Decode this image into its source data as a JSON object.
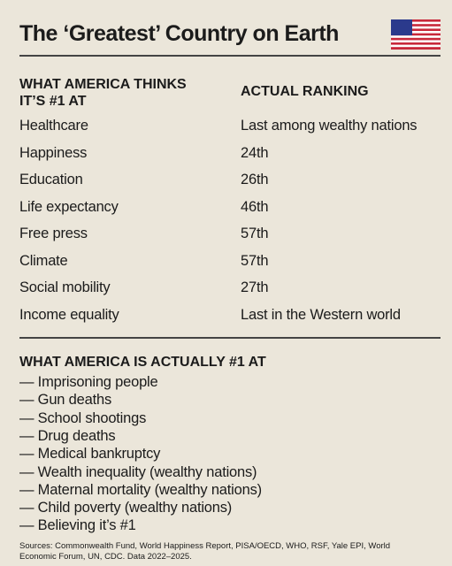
{
  "title": "The ‘Greatest’ Country on Earth",
  "table": {
    "headers": [
      "WHAT AMERICA THINKS IT’S #1 AT",
      "ACTUAL RANKING"
    ],
    "rows": [
      [
        "Healthcare",
        "Last among wealthy nations"
      ],
      [
        "Happiness",
        "24th"
      ],
      [
        "Education",
        "26th"
      ],
      [
        "Life expectancy",
        "46th"
      ],
      [
        "Free press",
        "57th"
      ],
      [
        "Climate",
        "57th"
      ],
      [
        "Social mobility",
        "27th"
      ],
      [
        "Income equality",
        "Last in the Western world"
      ]
    ]
  },
  "actual": {
    "heading": "WHAT AMERICA IS ACTUALLY #1 AT",
    "items": [
      "— Imprisoning people",
      "— Gun deaths",
      "— School shootings",
      "— Drug deaths",
      "— Medical bankruptcy",
      "— Wealth inequality (wealthy nations)",
      "— Maternal mortality (wealthy nations)",
      "— Child poverty (wealthy nations)",
      "— Believing it’s #1"
    ]
  },
  "sources": "Sources: Commonwealth Fund, World Happiness Report, PISA/OECD, WHO, RSF, Yale EPI, World Economic Forum, UN, CDC. Data 2022–2025."
}
